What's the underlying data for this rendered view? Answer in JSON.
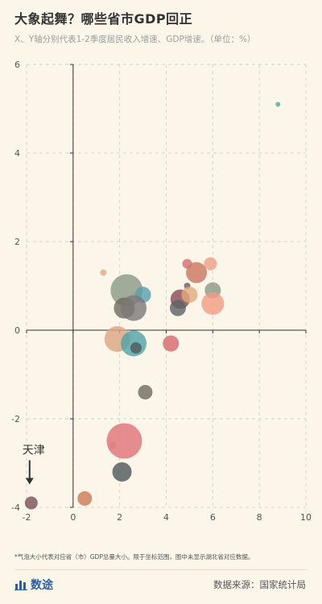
{
  "title": "大象起舞？哪些省市GDP回正",
  "subtitle": "X、Y轴分别代表1-2季度居民收入增速、GDP增速。（单位：%）",
  "footnote": "*气泡大小代表对应省（市）GDP总量大小。限于坐标范围，图中未显示湖北省对应数据。",
  "brand": "数途",
  "source": "数据来源：国家统计局",
  "chart_data": {
    "type": "scatter",
    "xlim": [
      -2,
      10
    ],
    "ylim": [
      -4,
      6
    ],
    "xticks": [
      "-2",
      "0",
      "2",
      "4",
      "6",
      "8",
      "10"
    ],
    "yticks": [
      "-4",
      "-2",
      "0",
      "2",
      "4",
      "6"
    ],
    "grid": true,
    "annotations": [
      {
        "text": "天津",
        "x": -1.8,
        "y": -3.7
      }
    ],
    "points": [
      {
        "x": 8.8,
        "y": 5.1,
        "size": 3,
        "color": "#4fa9a6"
      },
      {
        "x": 1.3,
        "y": 1.3,
        "size": 4,
        "color": "#e2ab7c"
      },
      {
        "x": 2.3,
        "y": 0.9,
        "size": 20,
        "color": "#8a9a84"
      },
      {
        "x": 3.0,
        "y": 0.8,
        "size": 10,
        "color": "#5a9fae"
      },
      {
        "x": 2.2,
        "y": 0.5,
        "size": 13,
        "color": "#6e6c5e"
      },
      {
        "x": 2.6,
        "y": 0.5,
        "size": 16,
        "color": "#7c7878"
      },
      {
        "x": 4.9,
        "y": 1.5,
        "size": 6,
        "color": "#d96b72"
      },
      {
        "x": 5.3,
        "y": 1.3,
        "size": 13,
        "color": "#c9755f"
      },
      {
        "x": 5.9,
        "y": 1.5,
        "size": 8,
        "color": "#ef9f86"
      },
      {
        "x": 6.0,
        "y": 0.9,
        "size": 10,
        "color": "#8a9a84"
      },
      {
        "x": 4.9,
        "y": 1.0,
        "size": 4,
        "color": "#6b5d5d"
      },
      {
        "x": 4.6,
        "y": 0.7,
        "size": 12,
        "color": "#8a4a55"
      },
      {
        "x": 5.0,
        "y": 0.8,
        "size": 10,
        "color": "#e2ab7c"
      },
      {
        "x": 6.0,
        "y": 0.6,
        "size": 14,
        "color": "#f29c83"
      },
      {
        "x": 4.5,
        "y": 0.5,
        "size": 10,
        "color": "#5b6467"
      },
      {
        "x": 1.9,
        "y": -0.2,
        "size": 16,
        "color": "#dca581"
      },
      {
        "x": 2.6,
        "y": -0.3,
        "size": 16,
        "color": "#4fa3a6"
      },
      {
        "x": 2.7,
        "y": -0.4,
        "size": 7,
        "color": "#4d5a5b"
      },
      {
        "x": 4.2,
        "y": -0.3,
        "size": 10,
        "color": "#d8656a"
      },
      {
        "x": 3.1,
        "y": -1.4,
        "size": 9,
        "color": "#6e6c5e"
      },
      {
        "x": 2.2,
        "y": -2.5,
        "size": 22,
        "color": "#de7277"
      },
      {
        "x": 1.7,
        "y": -2.6,
        "size": 4,
        "color": "#e07f80"
      },
      {
        "x": 2.1,
        "y": -3.2,
        "size": 12,
        "color": "#4f5759"
      },
      {
        "x": 0.5,
        "y": -3.8,
        "size": 9,
        "color": "#cc7a55"
      },
      {
        "x": -1.8,
        "y": -3.9,
        "size": 8,
        "color": "#7b4f5c"
      }
    ]
  }
}
